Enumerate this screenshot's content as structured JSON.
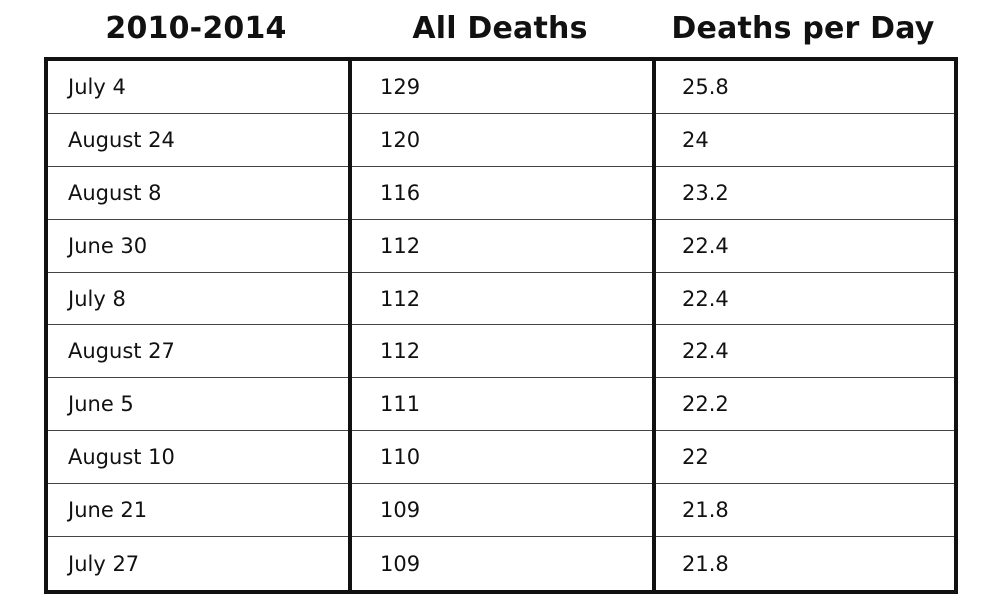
{
  "chart_data": {
    "type": "table",
    "columns": [
      "2010-2014",
      "All Deaths",
      "Deaths per Day"
    ],
    "rows": [
      {
        "date": "July 4",
        "all_deaths": "129",
        "deaths_per_day": "25.8"
      },
      {
        "date": "August 24",
        "all_deaths": "120",
        "deaths_per_day": "24"
      },
      {
        "date": "August 8",
        "all_deaths": "116",
        "deaths_per_day": "23.2"
      },
      {
        "date": "June 30",
        "all_deaths": "112",
        "deaths_per_day": "22.4"
      },
      {
        "date": "July 8",
        "all_deaths": "112",
        "deaths_per_day": "22.4"
      },
      {
        "date": "August 27",
        "all_deaths": "112",
        "deaths_per_day": "22.4"
      },
      {
        "date": "June 5",
        "all_deaths": "111",
        "deaths_per_day": "22.2"
      },
      {
        "date": "August 10",
        "all_deaths": "110",
        "deaths_per_day": "22"
      },
      {
        "date": "June 21",
        "all_deaths": "109",
        "deaths_per_day": "21.8"
      },
      {
        "date": "July 27",
        "all_deaths": "109",
        "deaths_per_day": "21.8"
      }
    ]
  }
}
